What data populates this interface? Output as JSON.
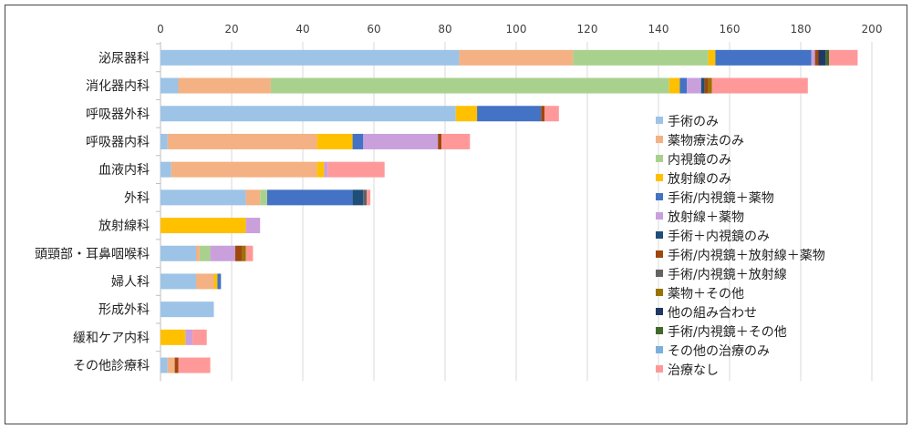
{
  "chart_data": {
    "type": "bar",
    "orientation": "horizontal",
    "stacked": true,
    "title": "",
    "xlabel": "",
    "ylabel": "",
    "xlim": [
      0,
      200
    ],
    "xticks": [
      0,
      20,
      40,
      60,
      80,
      100,
      120,
      140,
      160,
      180,
      200
    ],
    "grid": "vertical",
    "legend": "right-inside",
    "categories": [
      "泌尿器科",
      "消化器内科",
      "呼吸器外科",
      "呼吸器内科",
      "血液内科",
      "外科",
      "放射線科",
      "頭頸部・耳鼻咽喉科",
      "婦人科",
      "形成外科",
      "緩和ケア内科",
      "その他診療科"
    ],
    "series": [
      {
        "name": "手術のみ",
        "color": "#9DC3E6",
        "values": [
          84,
          5,
          83,
          2,
          3,
          24,
          0,
          10,
          10,
          15,
          0,
          2
        ]
      },
      {
        "name": "薬物療法のみ",
        "color": "#F4B183",
        "values": [
          32,
          26,
          0,
          42,
          41,
          4,
          0,
          1,
          5,
          0,
          0,
          2
        ]
      },
      {
        "name": "内視鏡のみ",
        "color": "#A9D18E",
        "values": [
          38,
          112,
          0,
          0,
          0,
          2,
          0,
          3,
          0,
          0,
          0,
          0
        ]
      },
      {
        "name": "放射線のみ",
        "color": "#FFC000",
        "values": [
          2,
          3,
          6,
          10,
          2,
          0,
          24,
          0,
          1,
          0,
          7,
          0
        ]
      },
      {
        "name": "手術/内視鏡＋薬物",
        "color": "#4472C4",
        "values": [
          27,
          2,
          18,
          3,
          0,
          24,
          0,
          0,
          1,
          0,
          0,
          0
        ]
      },
      {
        "name": "放射線＋薬物",
        "color": "#C9A0DC",
        "values": [
          1,
          4,
          0,
          21,
          1,
          0,
          4,
          7,
          0,
          0,
          2,
          0
        ]
      },
      {
        "name": "手術＋内視鏡のみ",
        "color": "#1F4E79",
        "values": [
          0,
          1,
          0,
          0,
          0,
          3,
          0,
          0,
          0,
          0,
          0,
          0
        ]
      },
      {
        "name": "手術/内視鏡＋放射線＋薬物",
        "color": "#9E480E",
        "values": [
          1,
          1,
          1,
          1,
          0,
          0,
          0,
          2,
          0,
          0,
          0,
          1
        ]
      },
      {
        "name": "手術/内視鏡＋放射線",
        "color": "#636363",
        "values": [
          0,
          0,
          0,
          0,
          0,
          1,
          0,
          0,
          0,
          0,
          0,
          0
        ]
      },
      {
        "name": "薬物＋その他",
        "color": "#997300",
        "values": [
          0,
          1,
          0,
          0,
          0,
          0,
          0,
          1,
          0,
          0,
          0,
          0
        ]
      },
      {
        "name": "他の組み合わせ",
        "color": "#203864",
        "values": [
          2,
          0,
          0,
          0,
          0,
          0,
          0,
          0,
          0,
          0,
          0,
          0
        ]
      },
      {
        "name": "手術/内視鏡＋その他",
        "color": "#43682B",
        "values": [
          1,
          0,
          0,
          0,
          0,
          0,
          0,
          0,
          0,
          0,
          0,
          0
        ]
      },
      {
        "name": "その他の治療のみ",
        "color": "#7CAFDD",
        "values": [
          0,
          0,
          0,
          0,
          0,
          0,
          0,
          0,
          0,
          0,
          0,
          0
        ]
      },
      {
        "name": "治療なし",
        "color": "#FF9999",
        "values": [
          8,
          27,
          4,
          8,
          16,
          1,
          0,
          2,
          0,
          0,
          4,
          9
        ]
      }
    ]
  }
}
